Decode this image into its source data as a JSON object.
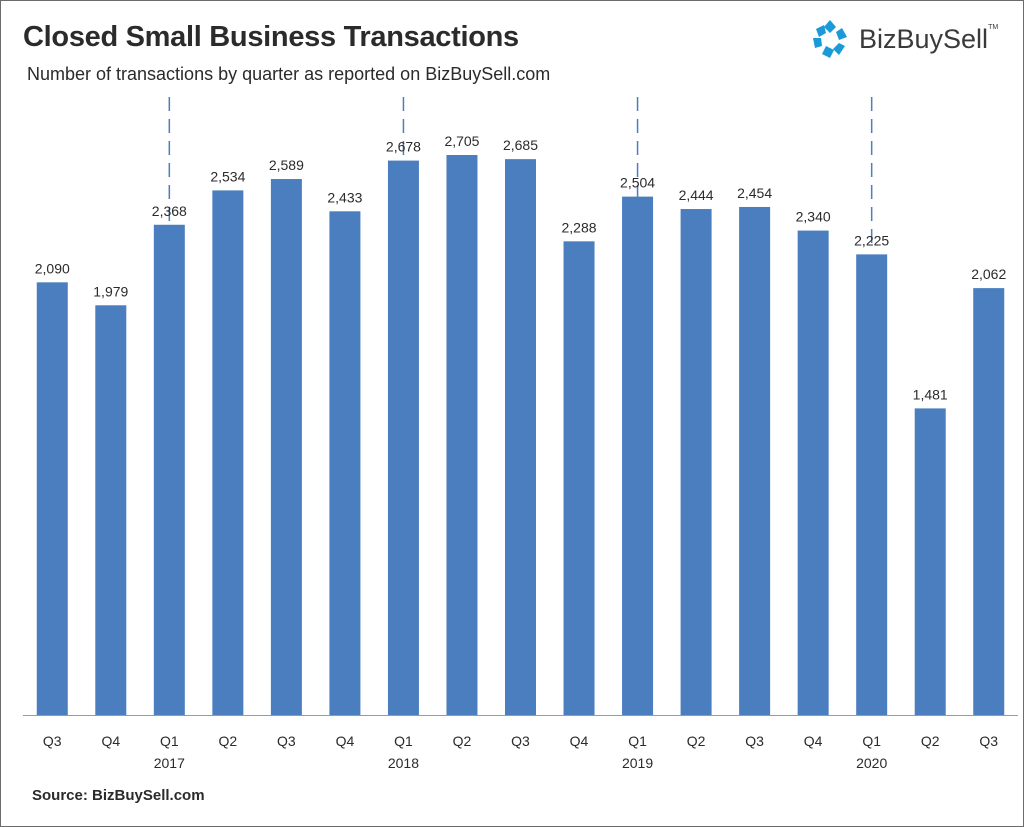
{
  "header": {
    "title": "Closed Small Business Transactions",
    "subtitle": "Number of transactions by quarter as reported on BizBuySell.com"
  },
  "brand": {
    "name": "BizBuySell",
    "trademark": "TM",
    "icon": "bizbuysell-logo-icon",
    "color": "#1a9ad6"
  },
  "footer": {
    "source": "Source: BizBuySell.com"
  },
  "chart_data": {
    "type": "bar",
    "categories": [
      "Q3",
      "Q4",
      "Q1",
      "Q2",
      "Q3",
      "Q4",
      "Q1",
      "Q2",
      "Q3",
      "Q4",
      "Q1",
      "Q2",
      "Q3",
      "Q4",
      "Q1",
      "Q2",
      "Q3"
    ],
    "values": [
      2090,
      1979,
      2368,
      2534,
      2589,
      2433,
      2678,
      2705,
      2685,
      2288,
      2504,
      2444,
      2454,
      2340,
      2225,
      1481,
      2062
    ],
    "data_labels": [
      "2,090",
      "1,979",
      "2,368",
      "2,534",
      "2,589",
      "2,433",
      "2,678",
      "2,705",
      "2,685",
      "2,288",
      "2,504",
      "2,444",
      "2,454",
      "2,340",
      "2,225",
      "1,481",
      "2,062"
    ],
    "year_labels": [
      {
        "category_index": 2,
        "label": "2017"
      },
      {
        "category_index": 6,
        "label": "2018"
      },
      {
        "category_index": 10,
        "label": "2019"
      },
      {
        "category_index": 14,
        "label": "2020"
      }
    ],
    "year_dividers_at_category_index": [
      2,
      6,
      10,
      14
    ],
    "ylim": [
      0,
      2705
    ],
    "grid": false,
    "legend": "none",
    "bar_color": "#4a7ebf",
    "divider_color": "#4a7ebf"
  }
}
